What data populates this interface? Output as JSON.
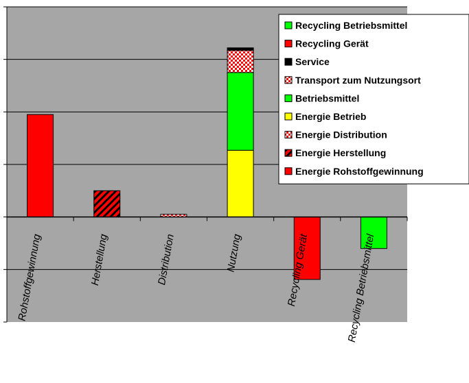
{
  "chart_data": {
    "type": "bar",
    "stacked": true,
    "title": "",
    "xlabel": "",
    "ylabel": "",
    "ylim": [
      -2,
      4
    ],
    "yticks": [
      -2,
      -1,
      0,
      1,
      2,
      3,
      4
    ],
    "ytick_labels_visible": false,
    "grid": true,
    "legend_placement": "top-right",
    "plot_background": "#a6a6a6",
    "categories": [
      "Rohstoffgewinnung",
      "Herstellung",
      "Distribution",
      "Nutzung",
      "Recycling Gerät",
      "Recycling Betriebsmittel"
    ],
    "series": [
      {
        "name": "Energie Rohstoffgewinnung",
        "color": "#ff0000",
        "pattern": "solid",
        "values": [
          1.95,
          0,
          0,
          0,
          0,
          0
        ]
      },
      {
        "name": "Energie Herstellung",
        "color": "#ff0000",
        "pattern": "diagonal-stripes",
        "values": [
          0,
          0.5,
          0,
          0,
          0,
          0
        ]
      },
      {
        "name": "Energie Distribution",
        "color": "#ff0000",
        "pattern": "checker",
        "values": [
          0,
          0,
          0.05,
          0,
          0,
          0
        ]
      },
      {
        "name": "Energie Betrieb",
        "color": "#ffff00",
        "pattern": "solid",
        "values": [
          0,
          0,
          0,
          1.27,
          0,
          0
        ]
      },
      {
        "name": "Betriebsmittel",
        "color": "#00ff00",
        "pattern": "solid",
        "values": [
          0,
          0,
          0,
          1.48,
          0,
          0
        ]
      },
      {
        "name": "Transport zum Nutzungsort",
        "color": "#ff0000",
        "pattern": "checker",
        "values": [
          0,
          0,
          0,
          0.42,
          0,
          0
        ]
      },
      {
        "name": "Service",
        "color": "#000000",
        "pattern": "solid",
        "values": [
          0,
          0,
          0,
          0.05,
          0,
          0
        ]
      },
      {
        "name": "Recycling Gerät",
        "color": "#ff0000",
        "pattern": "solid",
        "values": [
          0,
          0,
          0,
          0,
          -1.19,
          0
        ]
      },
      {
        "name": "Recycling Betriebsmittel",
        "color": "#00ff00",
        "pattern": "solid",
        "values": [
          0,
          0,
          0,
          0,
          0,
          -0.6
        ]
      }
    ],
    "legend_order": [
      "Recycling Betriebsmittel",
      "Recycling Gerät",
      "Service",
      "Transport zum Nutzungsort",
      "Betriebsmittel",
      "Energie Betrieb",
      "Energie Distribution",
      "Energie Herstellung",
      "Energie Rohstoffgewinnung"
    ]
  }
}
